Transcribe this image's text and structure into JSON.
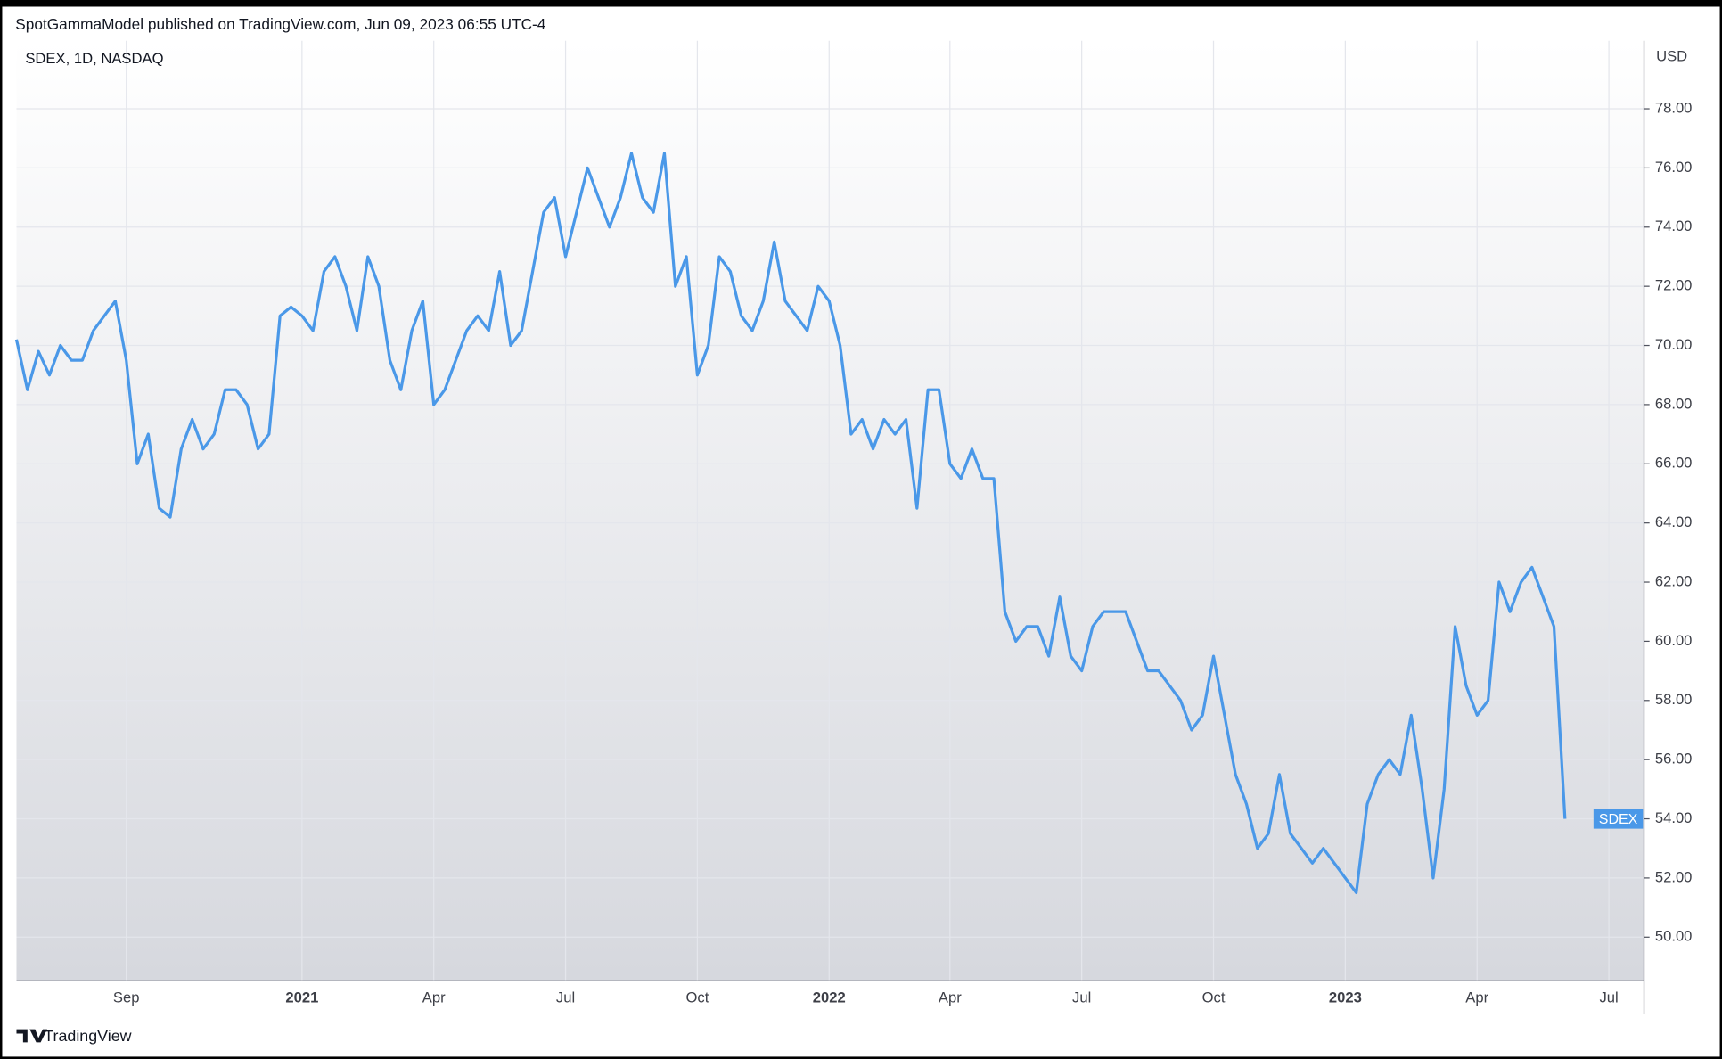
{
  "header_text": "SpotGammaModel published on TradingView.com, Jun 09, 2023 06:55 UTC-4",
  "footer_text": "TradingView",
  "chart_data": {
    "type": "line",
    "title": "SDEX, 1D, NASDAQ",
    "y_axis_label": "USD",
    "categories": [
      null,
      null,
      null,
      null,
      null,
      null,
      null,
      null,
      null,
      null,
      "Sep",
      null,
      null,
      null,
      null,
      null,
      null,
      null,
      null,
      null,
      null,
      null,
      null,
      null,
      null,
      null,
      "2021",
      null,
      null,
      null,
      null,
      null,
      null,
      null,
      null,
      null,
      null,
      null,
      "Apr",
      null,
      null,
      null,
      null,
      null,
      null,
      null,
      null,
      null,
      null,
      null,
      "Jul",
      null,
      null,
      null,
      null,
      null,
      null,
      null,
      null,
      null,
      null,
      null,
      "Oct",
      null,
      null,
      null,
      null,
      null,
      null,
      null,
      null,
      null,
      null,
      null,
      "2022",
      null,
      null,
      null,
      null,
      null,
      null,
      null,
      null,
      null,
      null,
      "Apr",
      null,
      null,
      null,
      null,
      null,
      null,
      null,
      null,
      null,
      null,
      null,
      "Jul",
      null,
      null,
      null,
      null,
      null,
      null,
      null,
      null,
      null,
      null,
      null,
      "Oct",
      null,
      null,
      null,
      null,
      null,
      null,
      null,
      null,
      null,
      null,
      null,
      "2023",
      null,
      null,
      null,
      null,
      null,
      null,
      null,
      null,
      null,
      null,
      null,
      "Apr",
      null,
      null,
      null,
      null,
      null,
      null,
      null,
      null,
      null,
      null,
      null,
      "Jul"
    ],
    "series": [
      {
        "name": "SDEX",
        "color": "#4a98e8",
        "values": [
          70.2,
          68.5,
          69.8,
          69,
          70,
          69.5,
          69.5,
          70.5,
          71,
          71.5,
          69.5,
          66,
          67,
          64.5,
          64.2,
          66.5,
          67.5,
          66.5,
          67,
          68.5,
          68.5,
          68,
          66.5,
          67,
          71,
          71.3,
          71,
          70.5,
          72.5,
          73,
          72,
          70.5,
          73,
          72,
          69.5,
          68.5,
          70.5,
          71.5,
          68,
          68.5,
          69.5,
          70.5,
          71,
          70.5,
          72.5,
          70,
          70.5,
          72.5,
          74.5,
          75,
          73,
          74.5,
          76,
          75,
          74,
          75,
          76.5,
          75,
          74.5,
          76.5,
          72,
          73,
          69,
          70,
          73,
          72.5,
          71,
          70.5,
          71.5,
          73.5,
          71.5,
          71,
          70.5,
          72,
          71.5,
          70,
          67,
          67.5,
          66.5,
          67.5,
          67,
          67.5,
          64.5,
          68.5,
          68.5,
          66,
          65.5,
          66.5,
          65.5,
          65.5,
          61,
          60,
          60.5,
          60.5,
          59.5,
          61.5,
          59.5,
          59,
          60.5,
          61,
          61,
          61,
          60,
          59,
          59,
          58.5,
          58,
          57,
          57.5,
          59.5,
          57.5,
          55.5,
          54.5,
          53,
          53.5,
          55.5,
          53.5,
          53,
          52.5,
          53,
          52.5,
          52,
          51.5,
          54.5,
          55.5,
          56,
          55.5,
          57.5,
          55,
          52,
          55,
          60.5,
          58.5,
          57.5,
          58,
          62,
          61,
          62,
          62.5,
          61.5,
          60.5,
          54,
          null,
          null,
          null,
          null
        ]
      }
    ],
    "ylim": [
      48.52,
      80.3
    ],
    "yticks": [
      {
        "value": 50,
        "label": "50.00"
      },
      {
        "value": 52,
        "label": "52.00"
      },
      {
        "value": 54,
        "label": "54.00"
      },
      {
        "value": 56,
        "label": "56.00"
      },
      {
        "value": 58,
        "label": "58.00"
      },
      {
        "value": 60,
        "label": "60.00"
      },
      {
        "value": 62,
        "label": "62.00"
      },
      {
        "value": 64,
        "label": "64.00"
      },
      {
        "value": 66,
        "label": "66.00"
      },
      {
        "value": 68,
        "label": "68.00"
      },
      {
        "value": 70,
        "label": "70.00"
      },
      {
        "value": 72,
        "label": "72.00"
      },
      {
        "value": 74,
        "label": "74.00"
      },
      {
        "value": 76,
        "label": "76.00"
      },
      {
        "value": 78,
        "label": "78.00"
      }
    ],
    "grid": true
  }
}
